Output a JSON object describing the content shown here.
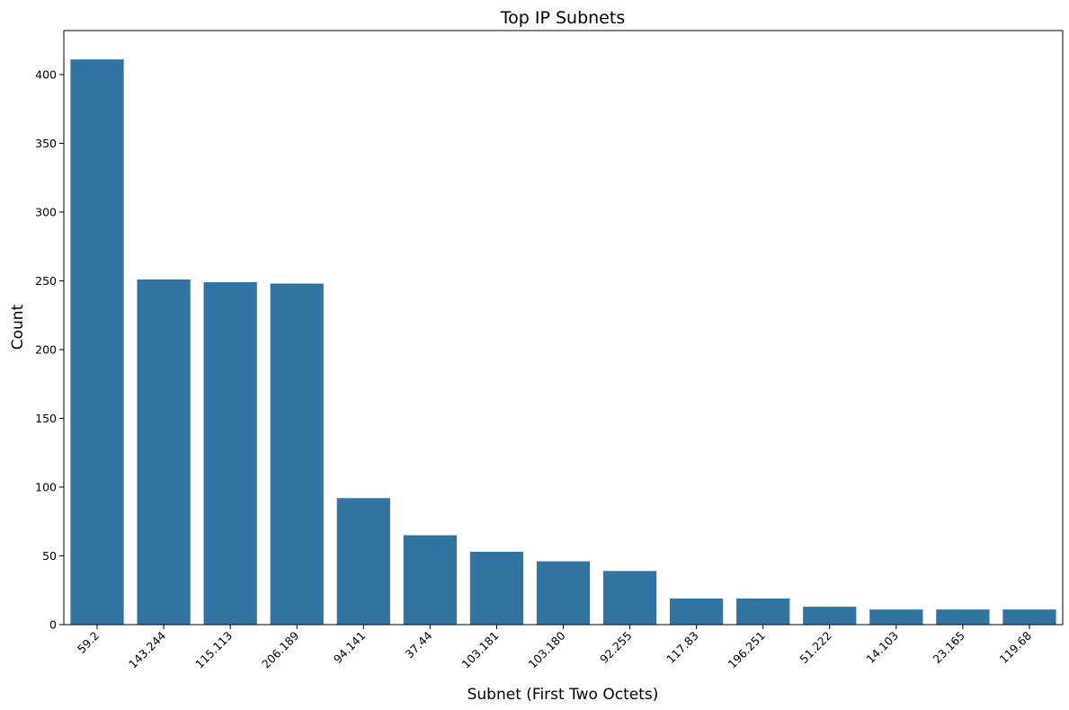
{
  "chart_data": {
    "type": "bar",
    "title": "Top IP Subnets",
    "xlabel": "Subnet (First Two Octets)",
    "ylabel": "Count",
    "categories": [
      "59.2",
      "143.244",
      "115.113",
      "206.189",
      "94.141",
      "37.44",
      "103.181",
      "103.180",
      "92.255",
      "117.83",
      "196.251",
      "51.222",
      "14.103",
      "23.165",
      "119.68"
    ],
    "values": [
      411,
      251,
      249,
      248,
      92,
      65,
      53,
      46,
      39,
      19,
      19,
      13,
      11,
      11,
      11
    ],
    "ylim": [
      0,
      432
    ],
    "yticks": [
      0,
      50,
      100,
      150,
      200,
      250,
      300,
      350,
      400
    ],
    "grid": false,
    "bar_color": "#3274a1"
  }
}
